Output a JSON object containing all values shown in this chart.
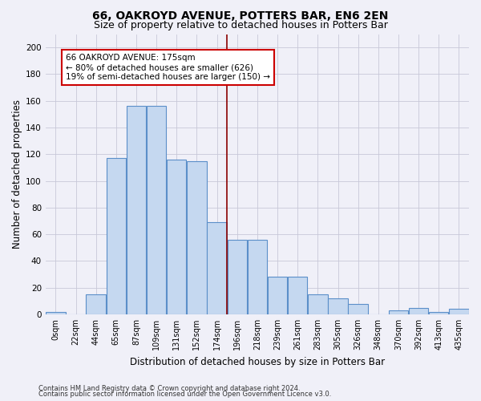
{
  "title": "66, OAKROYD AVENUE, POTTERS BAR, EN6 2EN",
  "subtitle": "Size of property relative to detached houses in Potters Bar",
  "xlabel": "Distribution of detached houses by size in Potters Bar",
  "ylabel": "Number of detached properties",
  "bar_labels": [
    "0sqm",
    "22sqm",
    "44sqm",
    "65sqm",
    "87sqm",
    "109sqm",
    "131sqm",
    "152sqm",
    "174sqm",
    "196sqm",
    "218sqm",
    "239sqm",
    "261sqm",
    "283sqm",
    "305sqm",
    "326sqm",
    "348sqm",
    "370sqm",
    "392sqm",
    "413sqm",
    "435sqm"
  ],
  "bar_heights": [
    2,
    0,
    15,
    117,
    156,
    156,
    116,
    115,
    69,
    56,
    56,
    28,
    28,
    15,
    12,
    8,
    0,
    3,
    5,
    2,
    4
  ],
  "bar_color": "#c5d8f0",
  "bar_edge_color": "#5b8fc9",
  "vline_x_index": 8,
  "vline_color": "#8b0000",
  "annotation_title": "66 OAKROYD AVENUE: 175sqm",
  "annotation_line1": "← 80% of detached houses are smaller (626)",
  "annotation_line2": "19% of semi-detached houses are larger (150) →",
  "annotation_box_color": "#cc0000",
  "ylim": [
    0,
    210
  ],
  "yticks": [
    0,
    20,
    40,
    60,
    80,
    100,
    120,
    140,
    160,
    180,
    200
  ],
  "footnote1": "Contains HM Land Registry data © Crown copyright and database right 2024.",
  "footnote2": "Contains public sector information licensed under the Open Government Licence v3.0.",
  "bg_color": "#f0f0f8",
  "grid_color": "#c8c8d8",
  "title_fontsize": 10,
  "subtitle_fontsize": 9,
  "axis_label_fontsize": 8.5,
  "tick_fontsize": 7,
  "annotation_fontsize": 7.5,
  "footnote_fontsize": 6
}
